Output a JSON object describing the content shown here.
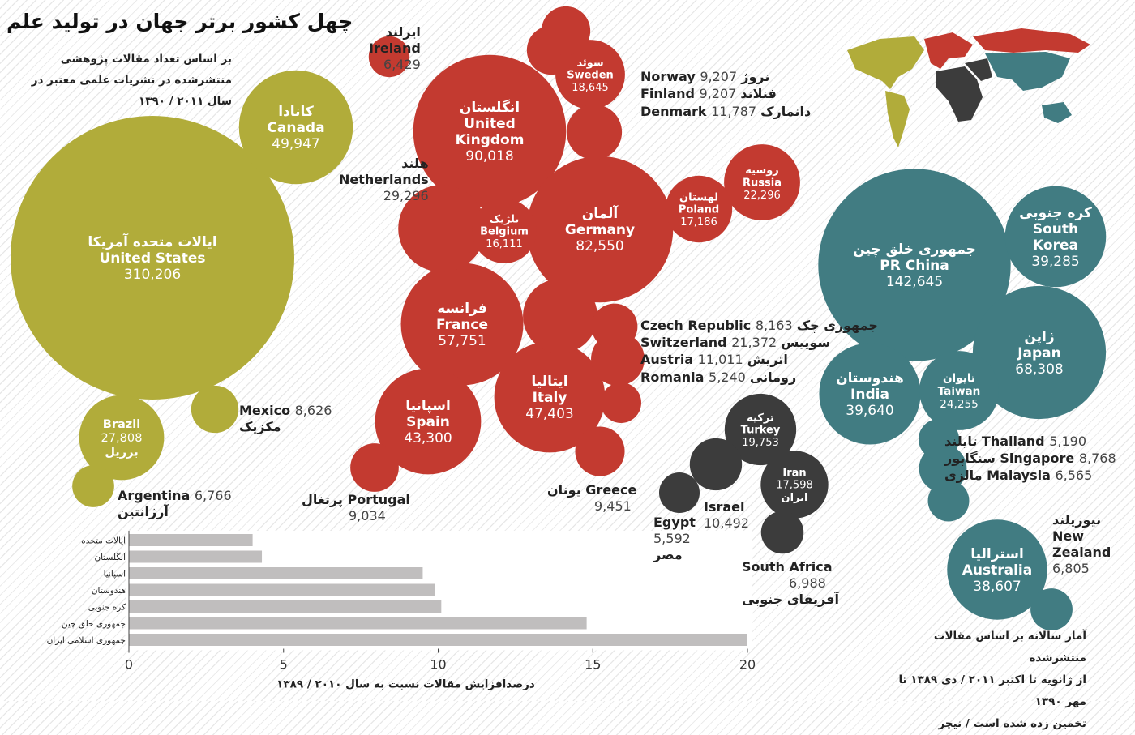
{
  "title": "چهل کشور برتر جهان در تولید علم",
  "subtitle": "بر اساس تعداد مقالات پژوهشی منتشرشده در نشریات علمی معتبر در سال ۲۰۱۱ / ۱۳۹۰",
  "footnote": [
    "آمار سالانه بر اساس مقالات منتشرشده",
    "از ژانویه تا اکتبر ۲۰۱۱ / دی ۱۳۸۹ تا مهر ۱۳۹۰",
    "تخمین زده شده است / نیچر"
  ],
  "colors": {
    "americas": "#b1ac3a",
    "europe": "#c33a30",
    "middle_east_africa": "#3c3c3c",
    "asia_pacific": "#417c82",
    "bar": "#c0bebe"
  },
  "chart_data": [
    {
      "type": "bubble",
      "groups": [
        {
          "name": "americas",
          "countries": [
            {
              "en": "United States",
              "fa": "ایالات متحده آمریکا",
              "value": 310206,
              "label": "inside"
            },
            {
              "en": "Canada",
              "fa": "کانادا",
              "value": 49947,
              "label": "inside"
            },
            {
              "en": "Brazil",
              "fa": "برزیل",
              "value": 27808,
              "label": "inside"
            },
            {
              "en": "Mexico",
              "fa": "مکزیک",
              "value": 8626,
              "label": "outside"
            },
            {
              "en": "Argentina",
              "fa": "آرژانتین",
              "value": 6766,
              "label": "outside"
            }
          ]
        },
        {
          "name": "europe",
          "countries": [
            {
              "en": "United Kingdom",
              "fa": "انگلستان",
              "value": 90018,
              "label": "inside"
            },
            {
              "en": "Germany",
              "fa": "آلمان",
              "value": 82550,
              "label": "inside"
            },
            {
              "en": "France",
              "fa": "فرانسه",
              "value": 57751,
              "label": "inside"
            },
            {
              "en": "Italy",
              "fa": "ایتالیا",
              "value": 47403,
              "label": "inside"
            },
            {
              "en": "Spain",
              "fa": "اسپانیا",
              "value": 43300,
              "label": "inside"
            },
            {
              "en": "Netherlands",
              "fa": "هلند",
              "value": 29296,
              "label": "outside"
            },
            {
              "en": "Russia",
              "fa": "روسیه",
              "value": 22296,
              "label": "inside"
            },
            {
              "en": "Switzerland",
              "fa": "سوییس",
              "value": 21372,
              "label": "outside"
            },
            {
              "en": "Sweden",
              "fa": "سوئد",
              "value": 18645,
              "label": "inside"
            },
            {
              "en": "Poland",
              "fa": "لهستان",
              "value": 17186,
              "label": "inside"
            },
            {
              "en": "Belgium",
              "fa": "بلژیک",
              "value": 16111,
              "label": "inside"
            },
            {
              "en": "Denmark",
              "fa": "دانمارک",
              "value": 11787,
              "label": "outside"
            },
            {
              "en": "Austria",
              "fa": "اتریش",
              "value": 11011,
              "label": "outside"
            },
            {
              "en": "Greece",
              "fa": "یونان",
              "value": 9451,
              "label": "outside"
            },
            {
              "en": "Norway",
              "fa": "نروژ",
              "value": 9207,
              "label": "outside"
            },
            {
              "en": "Finland",
              "fa": "فنلاند",
              "value": 9207,
              "label": "outside"
            },
            {
              "en": "Portugal",
              "fa": "پرتغال",
              "value": 9034,
              "label": "outside"
            },
            {
              "en": "Czech Republic",
              "fa": "جمهوری چک",
              "value": 8163,
              "label": "outside"
            },
            {
              "en": "Ireland",
              "fa": "ایرلند",
              "value": 6429,
              "label": "outside"
            },
            {
              "en": "Romania",
              "fa": "رومانی",
              "value": 5240,
              "label": "outside"
            }
          ]
        },
        {
          "name": "middle_east_africa",
          "countries": [
            {
              "en": "Turkey",
              "fa": "ترکیه",
              "value": 19753,
              "label": "inside"
            },
            {
              "en": "Iran",
              "fa": "ایران",
              "value": 17598,
              "label": "inside"
            },
            {
              "en": "Israel",
              "fa": "",
              "value": 10492,
              "label": "outside"
            },
            {
              "en": "South Africa",
              "fa": "آفریقای جنوبی",
              "value": 6988,
              "label": "outside"
            },
            {
              "en": "Egypt",
              "fa": "مصر",
              "value": 5592,
              "label": "outside"
            }
          ]
        },
        {
          "name": "asia_pacific",
          "countries": [
            {
              "en": "PR China",
              "fa": "جمهوری خلق چین",
              "value": 142645,
              "label": "inside"
            },
            {
              "en": "Japan",
              "fa": "ژاپن",
              "value": 68308,
              "label": "inside"
            },
            {
              "en": "India",
              "fa": "هندوستان",
              "value": 39640,
              "label": "inside"
            },
            {
              "en": "South Korea",
              "fa": "کره جنوبی",
              "value": 39285,
              "label": "inside"
            },
            {
              "en": "Australia",
              "fa": "استرالیا",
              "value": 38607,
              "label": "inside"
            },
            {
              "en": "Taiwan",
              "fa": "تایوان",
              "value": 24255,
              "label": "inside"
            },
            {
              "en": "Singapore",
              "fa": "سنگاپور",
              "value": 8768,
              "label": "outside"
            },
            {
              "en": "New Zealand",
              "fa": "نیوزیلند",
              "value": 6805,
              "label": "outside"
            },
            {
              "en": "Malaysia",
              "fa": "مالزی",
              "value": 6565,
              "label": "outside"
            },
            {
              "en": "Thailand",
              "fa": "تایلند",
              "value": 5190,
              "label": "outside"
            }
          ]
        }
      ]
    },
    {
      "type": "bar",
      "orientation": "horizontal",
      "categories": [
        "ایالات متحده",
        "انگلستان",
        "اسپانیا",
        "هندوستان",
        "کره جنوبی",
        "جمهوری خلق چین",
        "جمهوری اسلامی ایران"
      ],
      "values": [
        4.0,
        4.3,
        9.5,
        9.9,
        10.1,
        14.8,
        20.0
      ],
      "xlim": [
        0,
        20
      ],
      "xticks": [
        0,
        5,
        10,
        15,
        20
      ],
      "xlabel": "درصدافزایش مقالات نسبت به سال ۲۰۱۰ / ۱۳۸۹",
      "grid": false
    }
  ]
}
